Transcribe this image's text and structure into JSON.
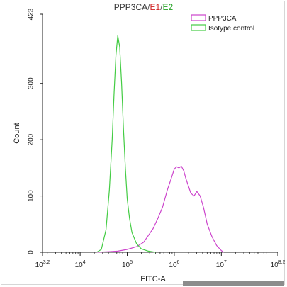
{
  "title": {
    "main": "PPP3CA",
    "sep": "/",
    "e1": "E1",
    "e2": "E2"
  },
  "colors": {
    "ppp3ca": "#cc44cc",
    "isotype": "#44cc44",
    "axis": "#222222",
    "e1": "#d02020",
    "e2": "#20a020"
  },
  "chart_data": {
    "type": "area",
    "title": "PPP3CA / E1 / E2",
    "xlabel": "FITC-A",
    "ylabel": "Count",
    "xscale": "log",
    "xlim": [
      3.2,
      8.2
    ],
    "ylim": [
      0,
      423
    ],
    "xticks": [
      {
        "exp": 3.2,
        "base": "10",
        "sup": "3.2"
      },
      {
        "exp": 4,
        "base": "10",
        "sup": "4"
      },
      {
        "exp": 5,
        "base": "10",
        "sup": "5"
      },
      {
        "exp": 6,
        "base": "10",
        "sup": "6"
      },
      {
        "exp": 7,
        "base": "10",
        "sup": "7"
      },
      {
        "exp": 8.2,
        "base": "10",
        "sup": "8.2"
      }
    ],
    "yticks": [
      "0",
      "100",
      "200",
      "300",
      "423"
    ],
    "ytick_values": [
      0,
      100,
      200,
      300,
      423
    ],
    "legend": {
      "position": "top-right"
    },
    "series": [
      {
        "name": "PPP3CA",
        "color": "#cc44cc",
        "x": [
          4.35,
          4.6,
          4.8,
          5.0,
          5.2,
          5.35,
          5.45,
          5.55,
          5.65,
          5.75,
          5.85,
          5.95,
          6.0,
          6.05,
          6.1,
          6.15,
          6.2,
          6.25,
          6.3,
          6.35,
          6.42,
          6.48,
          6.55,
          6.62,
          6.7,
          6.8,
          6.9,
          7.0,
          7.05
        ],
        "values": [
          0,
          1,
          2,
          5,
          10,
          18,
          30,
          42,
          60,
          80,
          110,
          135,
          148,
          152,
          150,
          153,
          145,
          130,
          118,
          105,
          100,
          108,
          100,
          80,
          50,
          28,
          12,
          3,
          0
        ]
      },
      {
        "name": "Isotype control",
        "color": "#44cc44",
        "x": [
          4.35,
          4.45,
          4.55,
          4.62,
          4.68,
          4.72,
          4.76,
          4.8,
          4.84,
          4.88,
          4.92,
          4.96,
          5.0,
          5.05,
          5.1,
          5.2,
          5.3,
          5.45,
          5.6
        ],
        "values": [
          0,
          5,
          40,
          110,
          200,
          280,
          350,
          385,
          365,
          300,
          220,
          150,
          95,
          60,
          35,
          15,
          6,
          2,
          0
        ]
      }
    ]
  }
}
